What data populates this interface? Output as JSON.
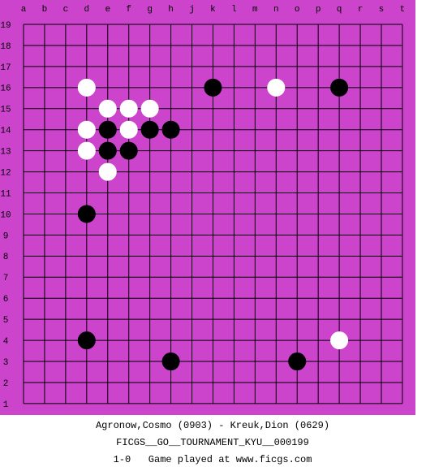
{
  "board": {
    "columns": [
      "a",
      "b",
      "c",
      "d",
      "e",
      "f",
      "g",
      "h",
      "j",
      "k",
      "l",
      "m",
      "n",
      "o",
      "p",
      "q",
      "r",
      "s",
      "t"
    ],
    "rows": [
      "19",
      "18",
      "17",
      "16",
      "15",
      "14",
      "13",
      "12",
      "11",
      "10",
      "9",
      "8",
      "7",
      "6",
      "5",
      "4",
      "3",
      "2",
      "1"
    ],
    "stones": [
      {
        "color": "white",
        "col": "d",
        "row": "16"
      },
      {
        "color": "white",
        "col": "n",
        "row": "16"
      },
      {
        "color": "white",
        "col": "e",
        "row": "15"
      },
      {
        "color": "white",
        "col": "f",
        "row": "15"
      },
      {
        "color": "white",
        "col": "g",
        "row": "15"
      },
      {
        "color": "white",
        "col": "d",
        "row": "14"
      },
      {
        "color": "white",
        "col": "f",
        "row": "14"
      },
      {
        "color": "white",
        "col": "d",
        "row": "13"
      },
      {
        "color": "white",
        "col": "e",
        "row": "12"
      },
      {
        "color": "white",
        "col": "q",
        "row": "4"
      },
      {
        "color": "black",
        "col": "k",
        "row": "16"
      },
      {
        "color": "black",
        "col": "q",
        "row": "16"
      },
      {
        "color": "black",
        "col": "e",
        "row": "14"
      },
      {
        "color": "black",
        "col": "g",
        "row": "14"
      },
      {
        "color": "black",
        "col": "h",
        "row": "14"
      },
      {
        "color": "black",
        "col": "e",
        "row": "13"
      },
      {
        "color": "black",
        "col": "f",
        "row": "13"
      },
      {
        "color": "black",
        "col": "d",
        "row": "10"
      },
      {
        "color": "black",
        "col": "d",
        "row": "4"
      },
      {
        "color": "black",
        "col": "h",
        "row": "3"
      },
      {
        "color": "black",
        "col": "o",
        "row": "3"
      }
    ]
  },
  "caption": {
    "players": "Agronow,Cosmo (0903) - Kreuk,Dion (0629)",
    "event": "FICGS__GO__TOURNAMENT_KYU__000199",
    "result": "1-0   Game played at www.ficgs.com"
  }
}
